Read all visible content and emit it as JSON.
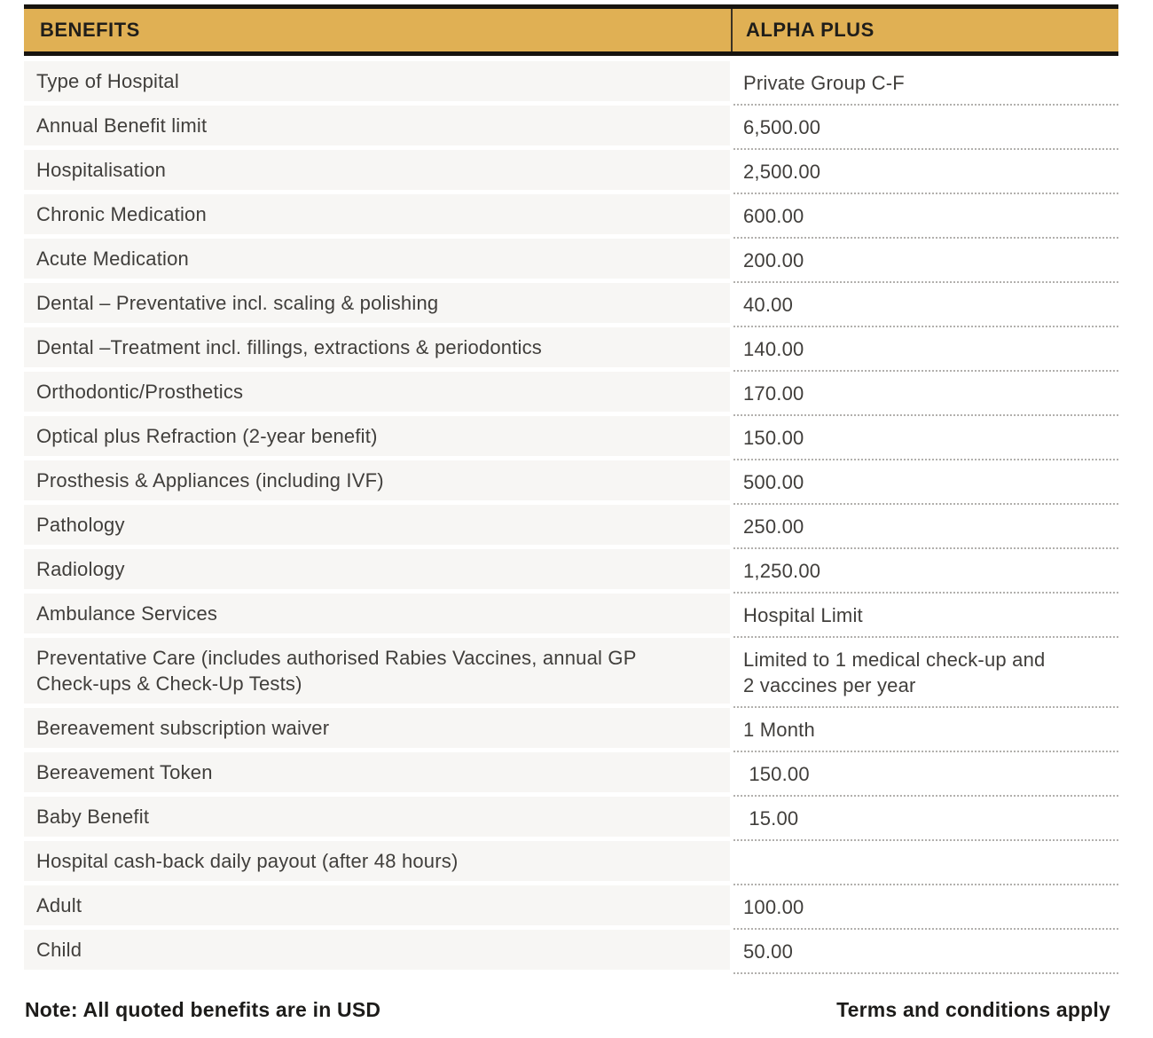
{
  "colors": {
    "header_gold": "#e0b054",
    "border_black": "#17140f",
    "row_gray": "#f7f6f4"
  },
  "header": {
    "benefits_label": "BENEFITS",
    "plan_label": "ALPHA PLUS"
  },
  "rows": [
    {
      "benefit": "Type of Hospital",
      "value": "Private Group C-F"
    },
    {
      "benefit": "Annual Benefit limit",
      "value": "6,500.00"
    },
    {
      "benefit": "Hospitalisation",
      "value": "2,500.00"
    },
    {
      "benefit": "Chronic Medication",
      "value": "600.00"
    },
    {
      "benefit": "Acute Medication",
      "value": "200.00"
    },
    {
      "benefit": "Dental – Preventative incl. scaling & polishing",
      "value": "40.00"
    },
    {
      "benefit": "Dental –Treatment incl. fillings, extractions & periodontics",
      "value": "140.00"
    },
    {
      "benefit": "Orthodontic/Prosthetics",
      "value": "170.00"
    },
    {
      "benefit": "Optical plus Refraction (2-year benefit)",
      "value": "150.00"
    },
    {
      "benefit": "Prosthesis & Appliances (including IVF)",
      "value": "500.00"
    },
    {
      "benefit": "Pathology",
      "value": "250.00"
    },
    {
      "benefit": "Radiology",
      "value": "1,250.00"
    },
    {
      "benefit": "Ambulance Services",
      "value": "Hospital Limit"
    },
    {
      "benefit": "Preventative Care (includes authorised Rabies Vaccines, annual GP\nCheck-ups & Check-Up Tests)",
      "value": "Limited to 1 medical check-up and\n2 vaccines per year"
    },
    {
      "benefit": "Bereavement subscription waiver",
      "value": "1 Month"
    },
    {
      "benefit": "Bereavement Token",
      "value": " 150.00"
    },
    {
      "benefit": "Baby Benefit",
      "value": " 15.00"
    },
    {
      "benefit": "Hospital cash-back daily payout (after 48 hours)",
      "value": ""
    },
    {
      "benefit": "Adult",
      "value": "100.00"
    },
    {
      "benefit": "Child",
      "value": "50.00"
    }
  ],
  "footer": {
    "note": "Note: All quoted benefits are in USD",
    "terms": "Terms and conditions apply"
  }
}
